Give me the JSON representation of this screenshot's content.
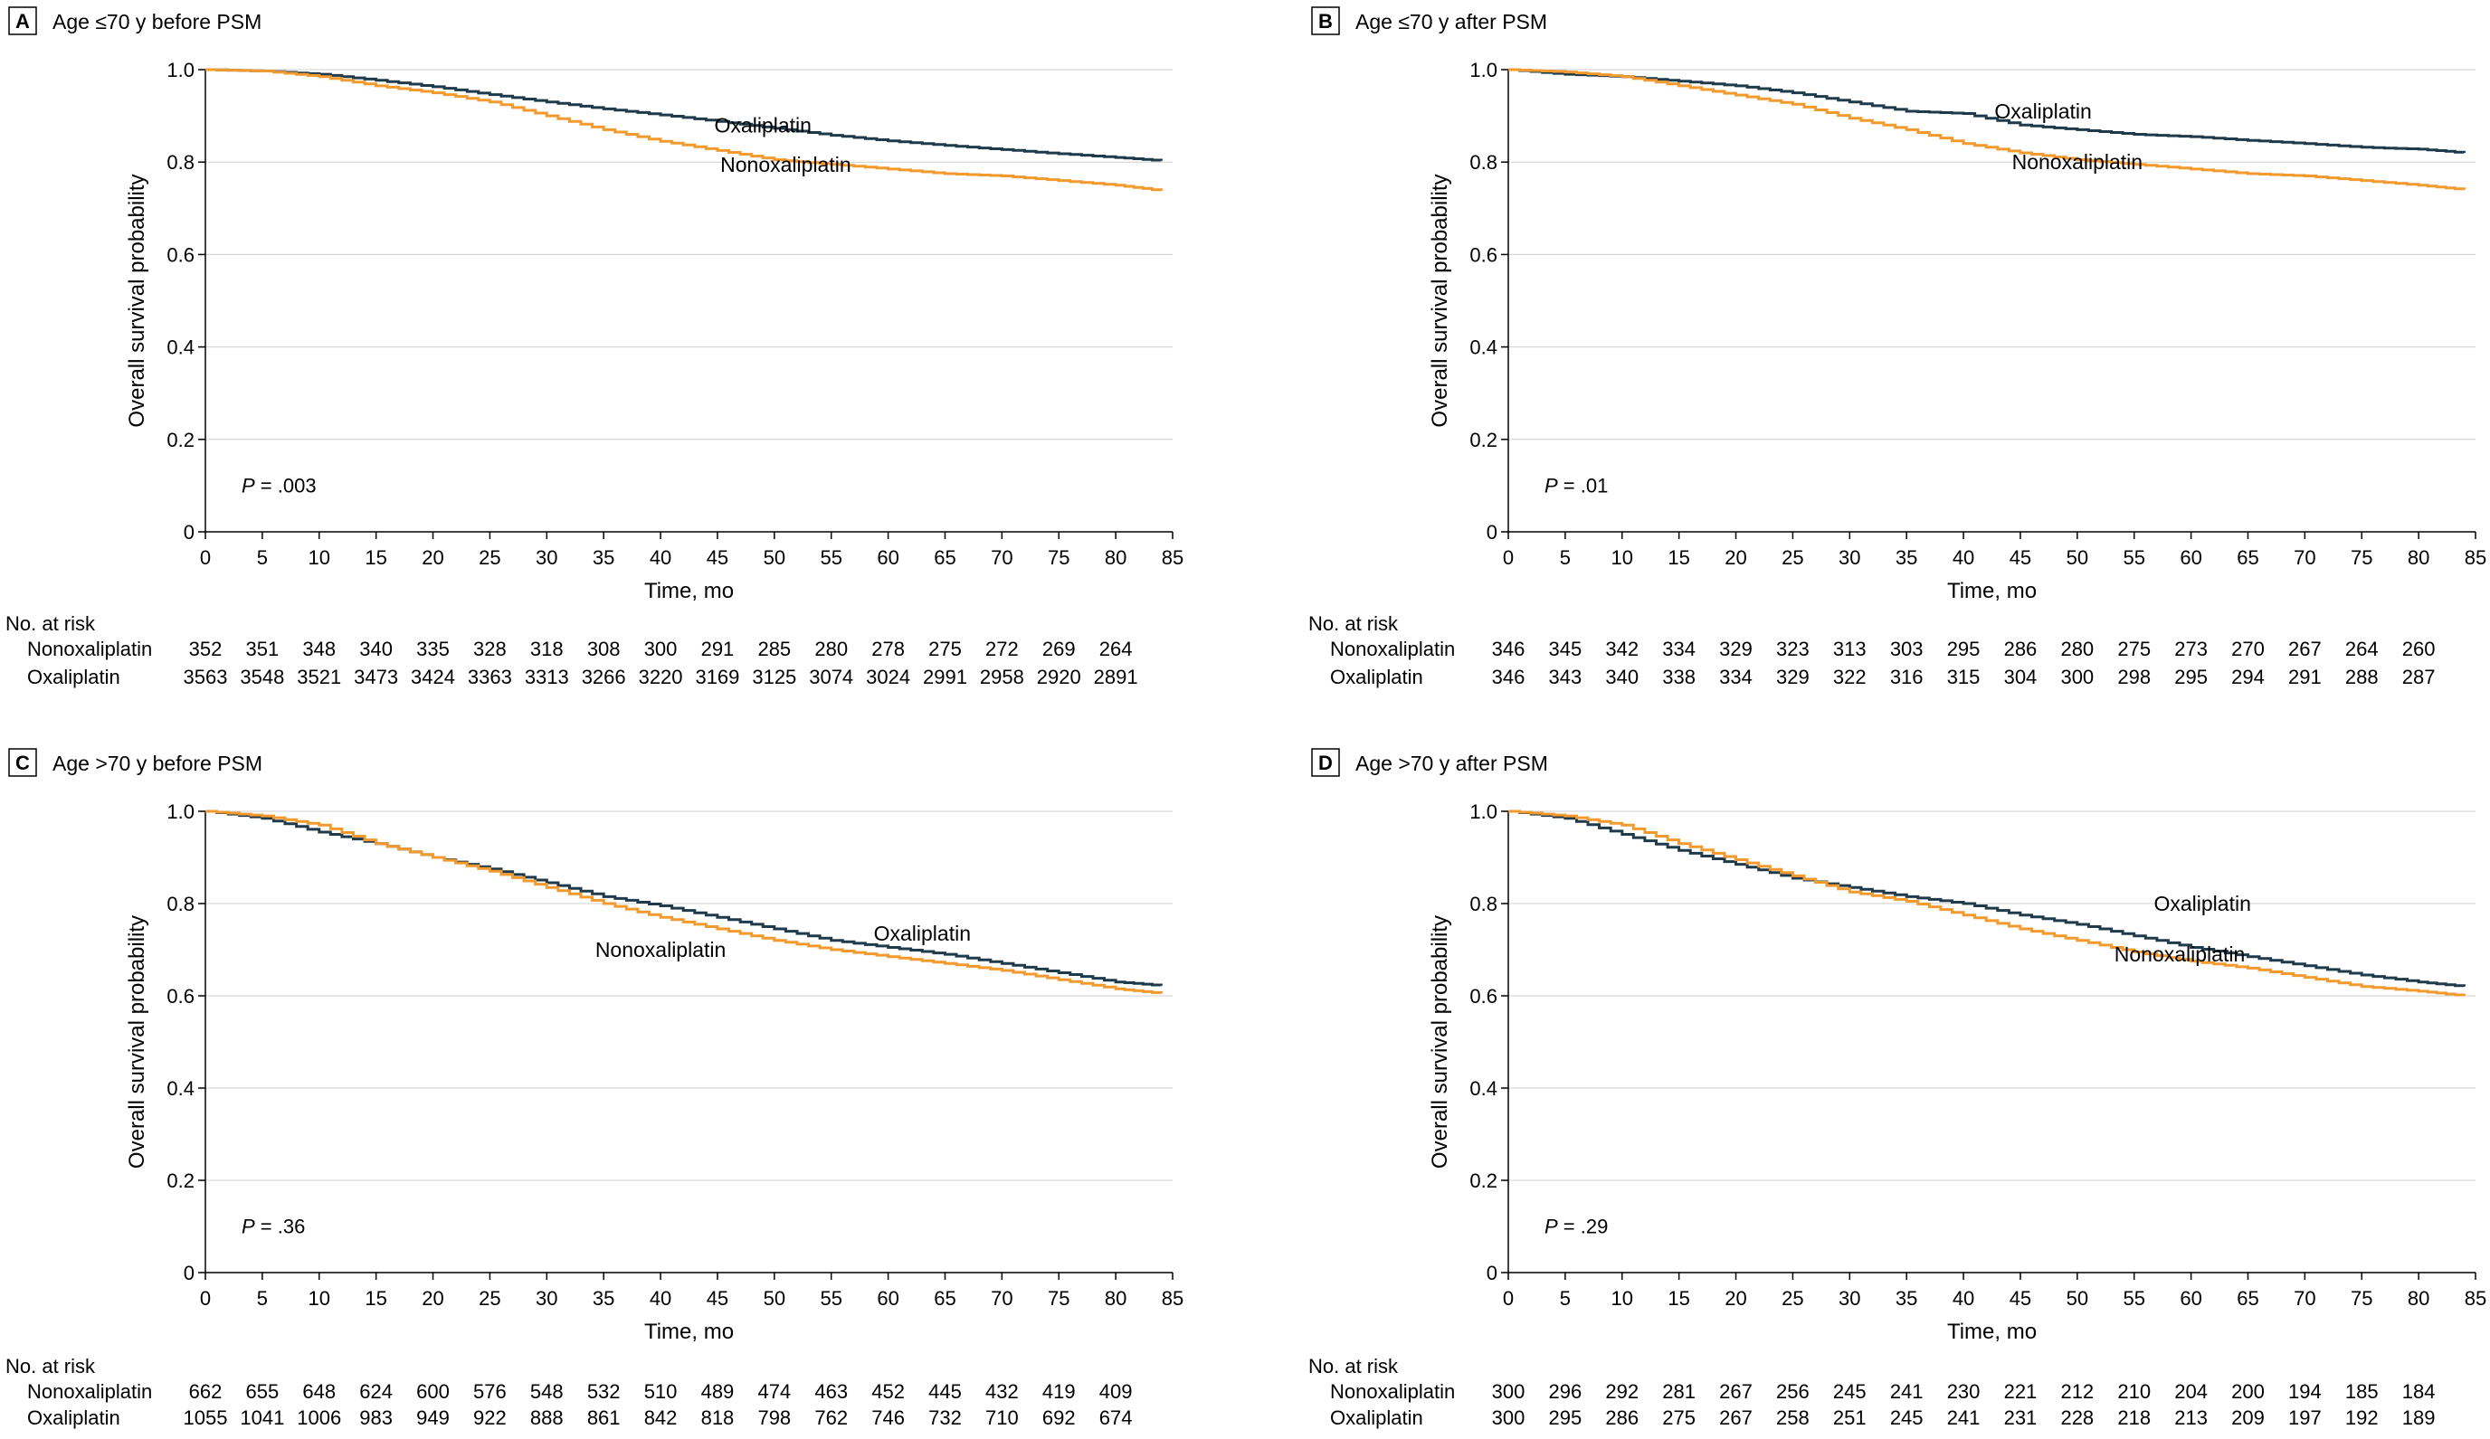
{
  "chart_data": [
    {
      "type": "line",
      "letter": "A",
      "title": "Age ≤70 y before PSM",
      "xlabel": "Time, mo",
      "ylabel": "Overall survival probability",
      "xlim": [
        0,
        85
      ],
      "ylim": [
        0,
        1.0
      ],
      "x_ticks": [
        "0",
        "5",
        "10",
        "15",
        "20",
        "25",
        "30",
        "35",
        "40",
        "45",
        "50",
        "55",
        "60",
        "65",
        "70",
        "75",
        "80",
        "85"
      ],
      "y_ticks": [
        "0",
        "0.2",
        "0.4",
        "0.6",
        "0.8",
        "1.0"
      ],
      "p_prefix": "P",
      "p_value": " = .003",
      "series": [
        {
          "name": "Oxaliplatin",
          "color": "#1f3a4a",
          "x": [
            0,
            5,
            10,
            15,
            20,
            25,
            30,
            35,
            40,
            45,
            50,
            55,
            60,
            65,
            70,
            75,
            80,
            84
          ],
          "y": [
            1.0,
            0.997,
            0.99,
            0.977,
            0.963,
            0.946,
            0.93,
            0.915,
            0.902,
            0.888,
            0.873,
            0.858,
            0.846,
            0.836,
            0.827,
            0.818,
            0.81,
            0.803
          ]
        },
        {
          "name": "Nonoxaliplatin",
          "color": "#f29a2e",
          "x": [
            0,
            5,
            10,
            15,
            20,
            25,
            30,
            35,
            40,
            45,
            50,
            55,
            60,
            65,
            70,
            75,
            80,
            84
          ],
          "y": [
            1.0,
            0.997,
            0.985,
            0.965,
            0.95,
            0.93,
            0.9,
            0.87,
            0.845,
            0.825,
            0.805,
            0.795,
            0.785,
            0.775,
            0.77,
            0.76,
            0.75,
            0.738
          ]
        }
      ],
      "labels": {
        "oxaliplatin": "Oxaliplatin",
        "nonoxaliplatin": "Nonoxaliplatin"
      },
      "risk_header": "No. at risk",
      "risk_rows": [
        {
          "name": "Nonoxaliplatin",
          "values": [
            "352",
            "351",
            "348",
            "340",
            "335",
            "328",
            "318",
            "308",
            "300",
            "291",
            "285",
            "280",
            "278",
            "275",
            "272",
            "269",
            "264"
          ]
        },
        {
          "name": "Oxaliplatin",
          "values": [
            "3563",
            "3548",
            "3521",
            "3473",
            "3424",
            "3363",
            "3313",
            "3266",
            "3220",
            "3169",
            "3125",
            "3074",
            "3024",
            "2991",
            "2958",
            "2920",
            "2891"
          ]
        }
      ]
    },
    {
      "type": "line",
      "letter": "B",
      "title": "Age ≤70 y after PSM",
      "xlabel": "Time, mo",
      "ylabel": "Overall survival probability",
      "xlim": [
        0,
        85
      ],
      "ylim": [
        0,
        1.0
      ],
      "x_ticks": [
        "0",
        "5",
        "10",
        "15",
        "20",
        "25",
        "30",
        "35",
        "40",
        "45",
        "50",
        "55",
        "60",
        "65",
        "70",
        "75",
        "80",
        "85"
      ],
      "y_ticks": [
        "0",
        "0.2",
        "0.4",
        "0.6",
        "0.8",
        "1.0"
      ],
      "p_prefix": "P",
      "p_value": " = .01",
      "series": [
        {
          "name": "Oxaliplatin",
          "color": "#1f3a4a",
          "x": [
            0,
            5,
            10,
            15,
            20,
            25,
            30,
            35,
            40,
            45,
            50,
            55,
            60,
            65,
            70,
            75,
            80,
            84
          ],
          "y": [
            1.0,
            0.99,
            0.985,
            0.975,
            0.965,
            0.95,
            0.93,
            0.91,
            0.905,
            0.88,
            0.87,
            0.86,
            0.855,
            0.847,
            0.84,
            0.832,
            0.828,
            0.82
          ]
        },
        {
          "name": "Nonoxaliplatin",
          "color": "#f29a2e",
          "x": [
            0,
            5,
            10,
            15,
            20,
            25,
            30,
            35,
            40,
            45,
            50,
            55,
            60,
            65,
            70,
            75,
            80,
            84
          ],
          "y": [
            1.0,
            0.995,
            0.985,
            0.965,
            0.945,
            0.925,
            0.895,
            0.87,
            0.84,
            0.82,
            0.805,
            0.795,
            0.785,
            0.775,
            0.77,
            0.76,
            0.75,
            0.74
          ]
        }
      ],
      "labels": {
        "oxaliplatin": "Oxaliplatin",
        "nonoxaliplatin": "Nonoxaliplatin"
      },
      "risk_header": "No. at risk",
      "risk_rows": [
        {
          "name": "Nonoxaliplatin",
          "values": [
            "346",
            "345",
            "342",
            "334",
            "329",
            "323",
            "313",
            "303",
            "295",
            "286",
            "280",
            "275",
            "273",
            "270",
            "267",
            "264",
            "260"
          ]
        },
        {
          "name": "Oxaliplatin",
          "values": [
            "346",
            "343",
            "340",
            "338",
            "334",
            "329",
            "322",
            "316",
            "315",
            "304",
            "300",
            "298",
            "295",
            "294",
            "291",
            "288",
            "287"
          ]
        }
      ]
    },
    {
      "type": "line",
      "letter": "C",
      "title": "Age >70 y before PSM",
      "xlabel": "Time, mo",
      "ylabel": "Overall survival probability",
      "xlim": [
        0,
        85
      ],
      "ylim": [
        0,
        1.0
      ],
      "x_ticks": [
        "0",
        "5",
        "10",
        "15",
        "20",
        "25",
        "30",
        "35",
        "40",
        "45",
        "50",
        "55",
        "60",
        "65",
        "70",
        "75",
        "80",
        "85"
      ],
      "y_ticks": [
        "0",
        "0.2",
        "0.4",
        "0.6",
        "0.8",
        "1.0"
      ],
      "p_prefix": "P",
      "p_value": " = .36",
      "series": [
        {
          "name": "Oxaliplatin",
          "color": "#1f3a4a",
          "x": [
            0,
            5,
            10,
            15,
            20,
            25,
            30,
            35,
            40,
            45,
            50,
            55,
            60,
            65,
            70,
            75,
            80,
            84
          ],
          "y": [
            1.0,
            0.985,
            0.955,
            0.93,
            0.9,
            0.875,
            0.845,
            0.815,
            0.795,
            0.77,
            0.745,
            0.72,
            0.705,
            0.69,
            0.67,
            0.65,
            0.63,
            0.622
          ]
        },
        {
          "name": "Nonoxaliplatin",
          "color": "#f29a2e",
          "x": [
            0,
            5,
            10,
            15,
            20,
            25,
            30,
            35,
            40,
            45,
            50,
            55,
            60,
            65,
            70,
            75,
            80,
            84
          ],
          "y": [
            1.0,
            0.99,
            0.97,
            0.93,
            0.9,
            0.87,
            0.835,
            0.8,
            0.77,
            0.745,
            0.72,
            0.7,
            0.685,
            0.67,
            0.655,
            0.635,
            0.615,
            0.605
          ]
        }
      ],
      "labels": {
        "oxaliplatin": "Oxaliplatin",
        "nonoxaliplatin": "Nonoxaliplatin"
      },
      "risk_header": "No. at risk",
      "risk_rows": [
        {
          "name": "Nonoxaliplatin",
          "values": [
            "662",
            "655",
            "648",
            "624",
            "600",
            "576",
            "548",
            "532",
            "510",
            "489",
            "474",
            "463",
            "452",
            "445",
            "432",
            "419",
            "409"
          ]
        },
        {
          "name": "Oxaliplatin",
          "values": [
            "1055",
            "1041",
            "1006",
            "983",
            "949",
            "922",
            "888",
            "861",
            "842",
            "818",
            "798",
            "762",
            "746",
            "732",
            "710",
            "692",
            "674"
          ]
        }
      ]
    },
    {
      "type": "line",
      "letter": "D",
      "title": "Age >70 y after PSM",
      "xlabel": "Time, mo",
      "ylabel": "Overall survival probability",
      "xlim": [
        0,
        85
      ],
      "ylim": [
        0,
        1.0
      ],
      "x_ticks": [
        "0",
        "5",
        "10",
        "15",
        "20",
        "25",
        "30",
        "35",
        "40",
        "45",
        "50",
        "55",
        "60",
        "65",
        "70",
        "75",
        "80",
        "85"
      ],
      "y_ticks": [
        "0",
        "0.2",
        "0.4",
        "0.6",
        "0.8",
        "1.0"
      ],
      "p_prefix": "P",
      "p_value": " = .29",
      "series": [
        {
          "name": "Oxaliplatin",
          "color": "#1f3a4a",
          "x": [
            0,
            5,
            10,
            15,
            20,
            25,
            30,
            35,
            40,
            45,
            50,
            55,
            60,
            65,
            70,
            75,
            80,
            84
          ],
          "y": [
            1.0,
            0.985,
            0.95,
            0.915,
            0.885,
            0.855,
            0.835,
            0.815,
            0.8,
            0.775,
            0.755,
            0.73,
            0.705,
            0.685,
            0.665,
            0.645,
            0.63,
            0.62
          ]
        },
        {
          "name": "Nonoxaliplatin",
          "color": "#f29a2e",
          "x": [
            0,
            5,
            10,
            15,
            20,
            25,
            30,
            35,
            40,
            45,
            50,
            55,
            60,
            65,
            70,
            75,
            80,
            84
          ],
          "y": [
            1.0,
            0.99,
            0.97,
            0.93,
            0.895,
            0.86,
            0.825,
            0.805,
            0.775,
            0.745,
            0.72,
            0.695,
            0.675,
            0.66,
            0.64,
            0.62,
            0.61,
            0.6
          ]
        }
      ],
      "labels": {
        "oxaliplatin": "Oxaliplatin",
        "nonoxaliplatin": "Nonoxaliplatin"
      },
      "risk_header": "No. at risk",
      "risk_rows": [
        {
          "name": "Nonoxaliplatin",
          "values": [
            "300",
            "296",
            "292",
            "281",
            "267",
            "256",
            "245",
            "241",
            "230",
            "221",
            "212",
            "210",
            "204",
            "200",
            "194",
            "185",
            "184"
          ]
        },
        {
          "name": "Oxaliplatin",
          "values": [
            "300",
            "295",
            "286",
            "275",
            "267",
            "258",
            "251",
            "245",
            "241",
            "231",
            "228",
            "218",
            "213",
            "209",
            "197",
            "192",
            "189"
          ]
        }
      ]
    }
  ]
}
